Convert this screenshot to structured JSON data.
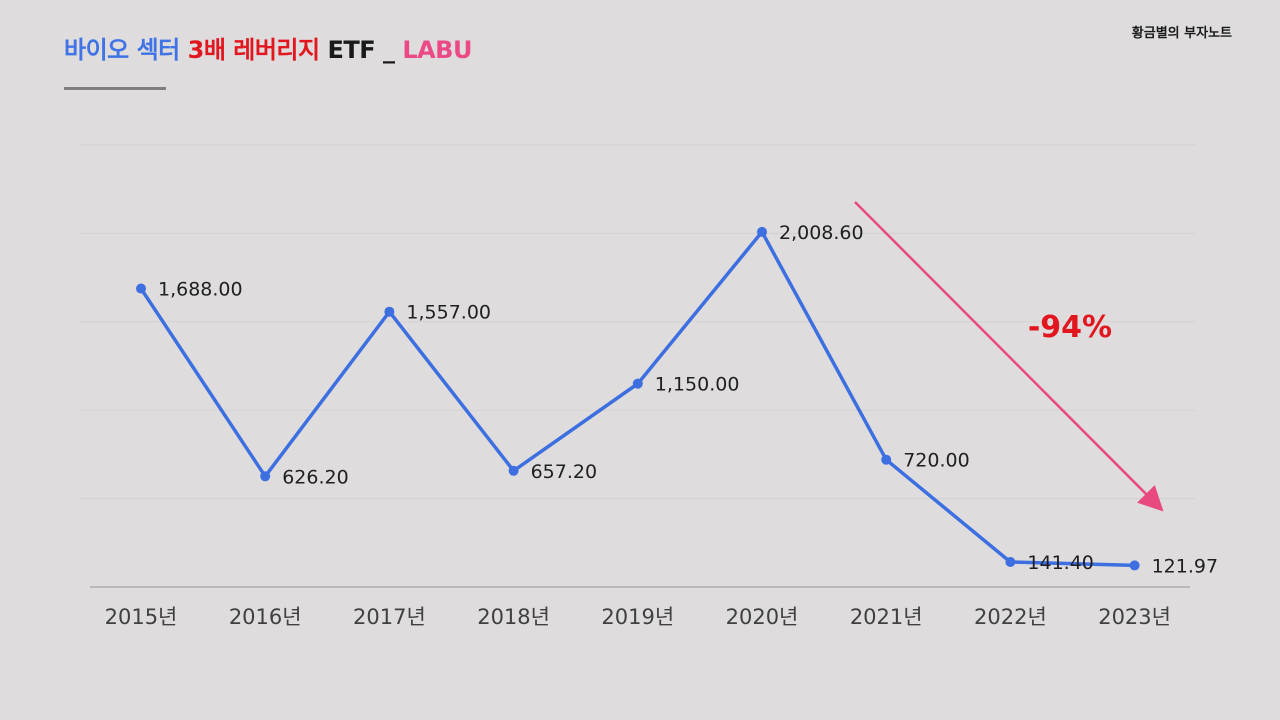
{
  "header": {
    "title_parts": [
      {
        "text": "바이오 섹터 ",
        "color": "#3f73e6"
      },
      {
        "text": "3배 레버리지 ",
        "color": "#e2161f"
      },
      {
        "text": "ETF _ ",
        "color": "#1a1a1a"
      },
      {
        "text": "LABU",
        "color": "#ec4a86"
      }
    ],
    "brand": "황금별의 부자노트"
  },
  "chart_data": {
    "type": "line",
    "title": "",
    "xlabel": "",
    "ylabel": "",
    "categories": [
      "2015년",
      "2016년",
      "2017년",
      "2018년",
      "2019년",
      "2020년",
      "2021년",
      "2022년",
      "2023년"
    ],
    "series": [
      {
        "values": [
          1688.0,
          626.2,
          1557.0,
          657.2,
          1150.0,
          2008.6,
          720.0,
          141.4,
          121.97
        ],
        "labels": [
          "1,688.00",
          "626.20",
          "1,557.00",
          "657.20",
          "1,150.00",
          "2,008.60",
          "720.00",
          "141.40",
          "121.97"
        ],
        "color": "#3d6fe0"
      }
    ],
    "ylim": [
      0,
      2500
    ],
    "grid": true,
    "legend": "none",
    "annotation": {
      "text": "-94%",
      "color": "#e2161f",
      "arrow_color": "#e8497e",
      "from_category": "2020년",
      "to_category": "2023년"
    }
  }
}
